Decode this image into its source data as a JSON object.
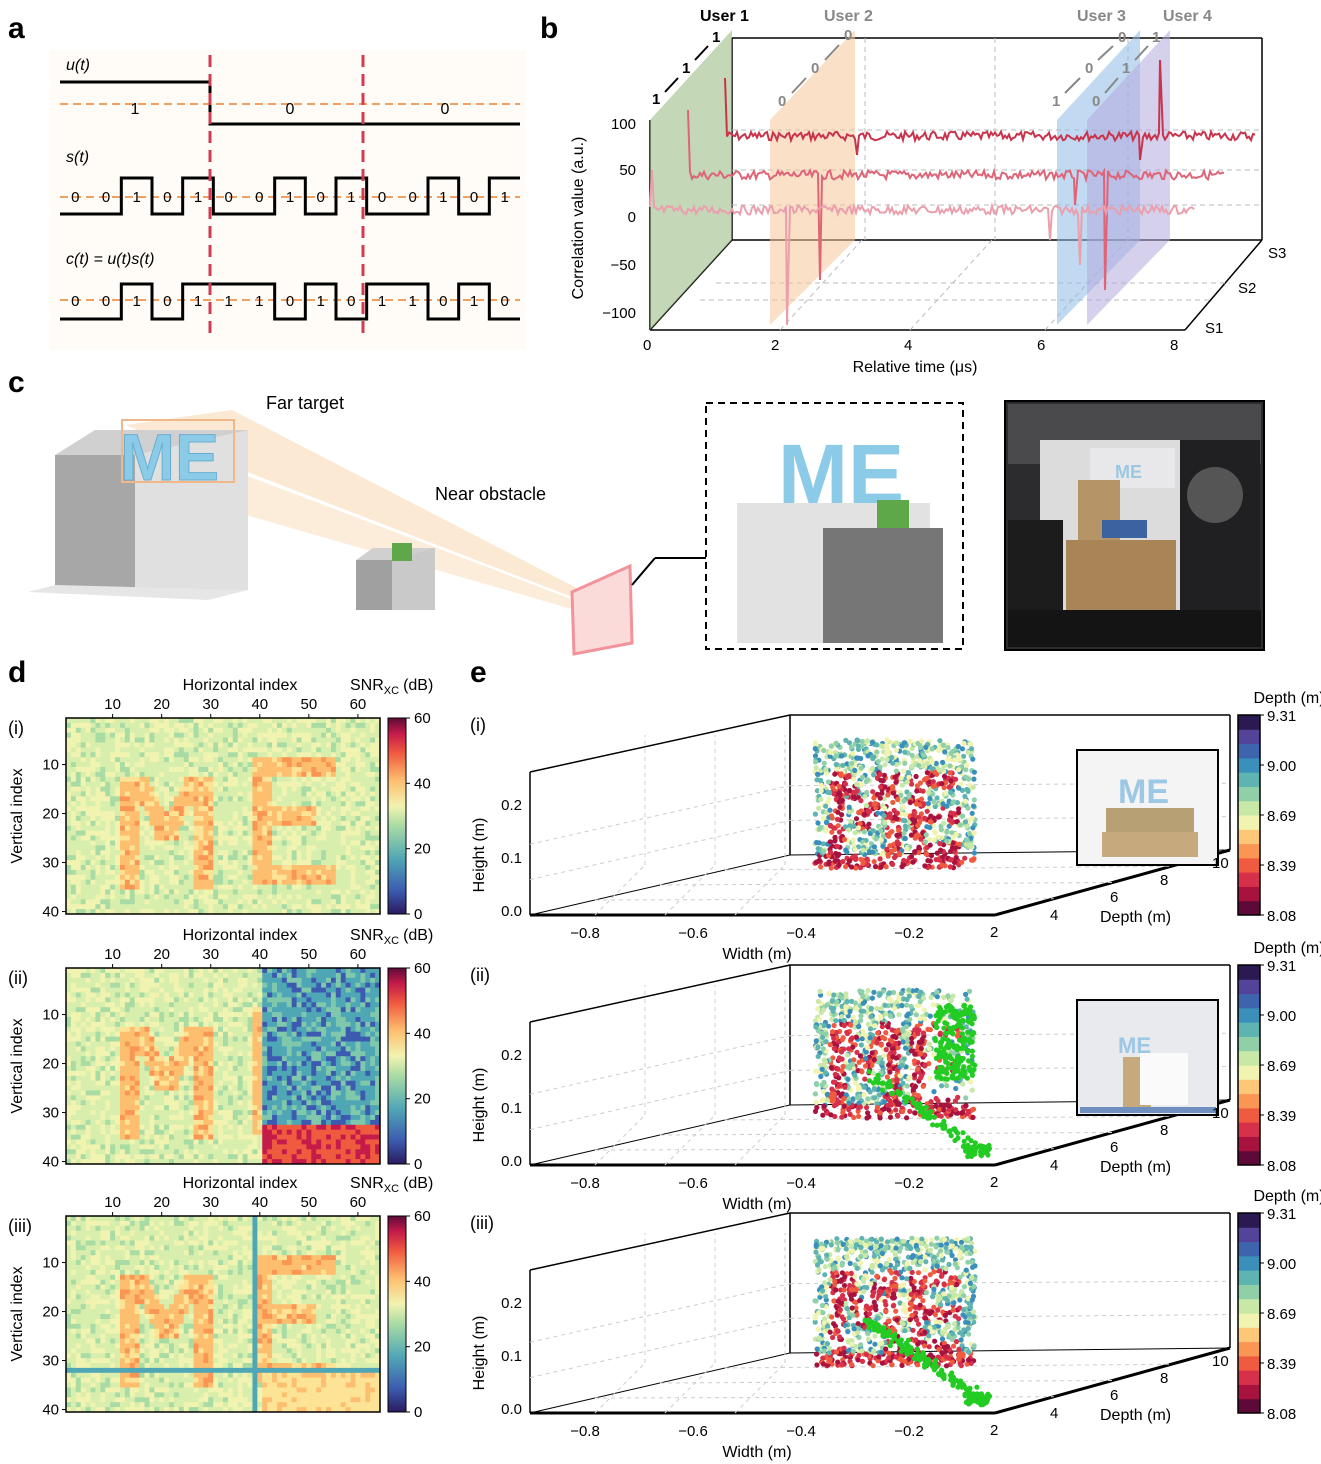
{
  "panel_a": {
    "letter": "a",
    "u_label": "u(t)",
    "s_label": "s(t)",
    "c_label": "c(t) = u(t)s(t)",
    "u_bits": [
      "1",
      "0",
      "0"
    ],
    "s_bits": [
      "0",
      "0",
      "1",
      "0",
      "1",
      "0",
      "0",
      "1",
      "0",
      "1",
      "0",
      "0",
      "1",
      "0",
      "1"
    ],
    "c_bits": [
      "0",
      "0",
      "1",
      "0",
      "1",
      "1",
      "1",
      "0",
      "1",
      "0",
      "1",
      "1",
      "0",
      "1",
      "0"
    ]
  },
  "panel_b": {
    "letter": "b",
    "users": [
      "User 1",
      "User 2",
      "User 3",
      "User 4"
    ],
    "user1_codes": [
      "1",
      "1",
      "1"
    ],
    "user2_codes": [
      "0",
      "0",
      "0"
    ],
    "user3_codes": [
      "1",
      "0",
      "0"
    ],
    "user4_codes": [
      "0",
      "1",
      "1"
    ],
    "ylabel": "Correlation value (a.u.)",
    "xlabel": "Relative time (μs)",
    "yticks": [
      "100",
      "50",
      "0",
      "−50",
      "−100"
    ],
    "xticks": [
      "0",
      "2",
      "4",
      "6",
      "8"
    ],
    "sensors": [
      "S3",
      "S2",
      "S1"
    ],
    "series_colors": [
      "#c8344c",
      "#de6478",
      "#eaa0ac"
    ],
    "plane_colors": [
      "#93b87e",
      "#f7c79a",
      "#8fbbe6",
      "#b2a9dd"
    ]
  },
  "panel_c": {
    "letter": "c",
    "far_label": "Far target",
    "near_label": "Near obstacle",
    "letters": "ME",
    "letter_color": "#8ccbe8",
    "obstacle_color": "#5fa84a"
  },
  "panel_d": {
    "letter": "d",
    "sub": [
      "(i)",
      "(ii)",
      "(iii)"
    ],
    "xlabel": "Horizontal index",
    "ylabel": "Vertical index",
    "cbar_label": "SNR",
    "cbar_sub": "XC",
    "cbar_unit": "(dB)",
    "xticks": [
      "10",
      "20",
      "30",
      "40",
      "50",
      "60"
    ],
    "yticks": [
      "10",
      "20",
      "30",
      "40"
    ],
    "cbar_ticks": [
      "60",
      "40",
      "20",
      "0"
    ]
  },
  "panel_e": {
    "letter": "e",
    "sub": [
      "(i)",
      "(ii)",
      "(iii)"
    ],
    "width_label": "Width (m)",
    "height_label": "Height (m)",
    "depth_label": "Depth (m)",
    "width_ticks": [
      "−0.8",
      "−0.6",
      "−0.4",
      "−0.2"
    ],
    "height_ticks": [
      "0.2",
      "0.1",
      "0.0"
    ],
    "depth_ticks": [
      "2",
      "4",
      "6",
      "8",
      "10"
    ],
    "cbar_title": "Depth (m)",
    "cbar_ticks": [
      "9.31",
      "9.00",
      "8.69",
      "8.39",
      "8.08"
    ],
    "obstacle_color": "#22cc22"
  }
}
